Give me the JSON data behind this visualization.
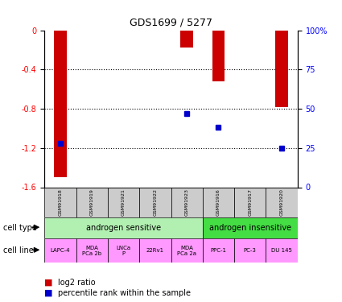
{
  "title": "GDS1699 / 5277",
  "samples": [
    "GSM91918",
    "GSM91919",
    "GSM91921",
    "GSM91922",
    "GSM91923",
    "GSM91916",
    "GSM91917",
    "GSM91920"
  ],
  "log2_ratios": [
    -1.5,
    0,
    0,
    0,
    -0.18,
    -0.52,
    0,
    -0.78
  ],
  "percentile_ranks": [
    28,
    0,
    0,
    0,
    47,
    38,
    0,
    25
  ],
  "ylim_left": [
    -1.6,
    0
  ],
  "ylim_right": [
    0,
    100
  ],
  "yticks_left": [
    0,
    -0.4,
    -0.8,
    -1.2,
    -1.6
  ],
  "yticks_right": [
    0,
    25,
    50,
    75,
    100
  ],
  "cell_type_groups": [
    {
      "label": "androgen sensitive",
      "start": 0,
      "end": 5,
      "color": "#b2f0b2"
    },
    {
      "label": "androgen insensitive",
      "start": 5,
      "end": 8,
      "color": "#44dd44"
    }
  ],
  "cell_lines": [
    "LAPC-4",
    "MDA\nPCa 2b",
    "LNCa\nP",
    "22Rv1",
    "MDA\nPCa 2a",
    "PPC-1",
    "PC-3",
    "DU 145"
  ],
  "cell_line_color": "#ff99ff",
  "sample_box_color": "#cccccc",
  "bar_color": "#cc0000",
  "dot_color": "#0000cc",
  "bar_width": 0.4,
  "dot_size": 5,
  "legend_bar_label": "log2 ratio",
  "legend_dot_label": "percentile rank within the sample"
}
